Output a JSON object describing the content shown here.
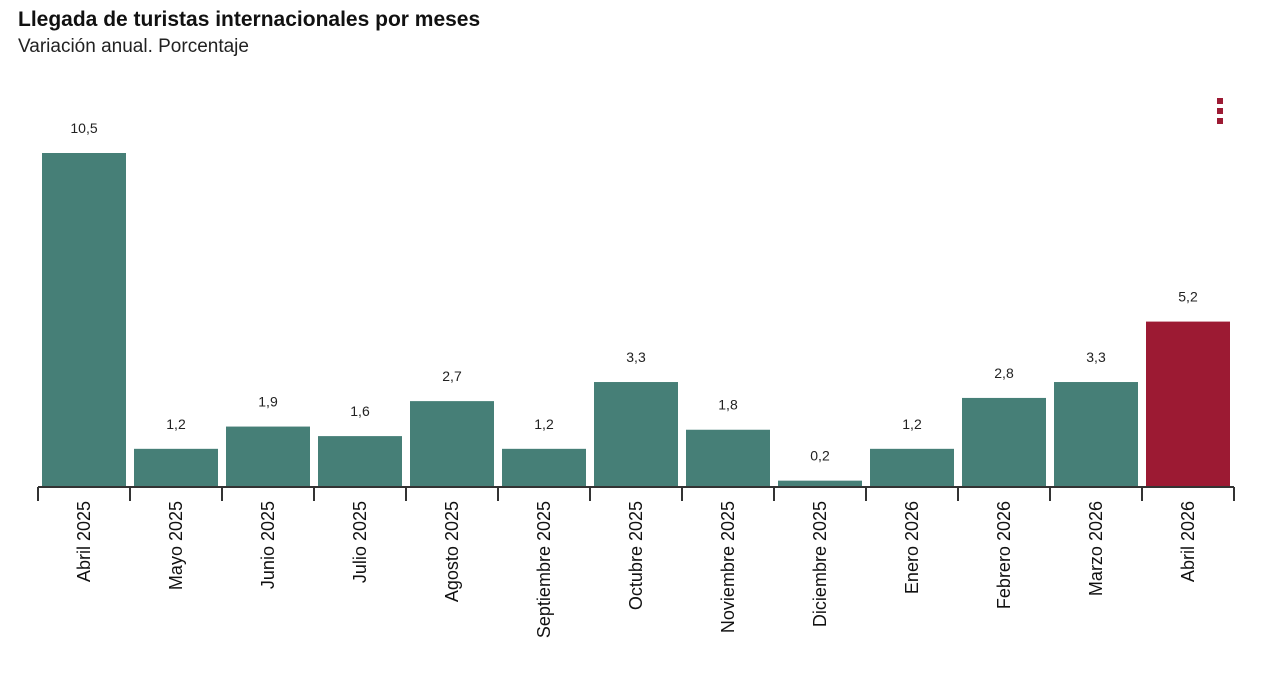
{
  "chart_data": {
    "type": "bar",
    "title": "Llegada de turistas internacionales por meses",
    "subtitle": "Variación anual. Porcentaje",
    "categories": [
      "Abril 2025",
      "Mayo 2025",
      "Junio 2025",
      "Julio 2025",
      "Agosto 2025",
      "Septiembre 2025",
      "Octubre 2025",
      "Noviembre 2025",
      "Diciembre 2025",
      "Enero 2026",
      "Febrero 2026",
      "Marzo 2026",
      "Abril 2026"
    ],
    "values": [
      10.5,
      1.2,
      1.9,
      1.6,
      2.7,
      1.2,
      3.3,
      1.8,
      0.2,
      1.2,
      2.8,
      3.3,
      5.2
    ],
    "value_labels": [
      "10,5",
      "1,2",
      "1,9",
      "1,6",
      "2,7",
      "1,2",
      "3,3",
      "1,8",
      "0,2",
      "1,2",
      "2,8",
      "3,3",
      "5,2"
    ],
    "highlight_index": 12,
    "colors": {
      "bar": "#467f77",
      "highlight": "#9c1a33",
      "axis": "#333333"
    },
    "ylim": [
      0,
      10.5
    ],
    "grid": false,
    "legend": "none"
  },
  "menu": {
    "icon": "more-vertical-icon"
  }
}
